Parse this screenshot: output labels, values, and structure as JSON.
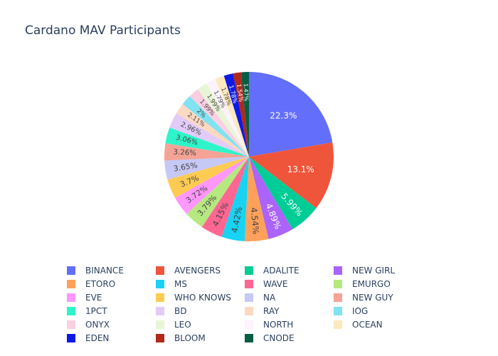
{
  "chart_data": {
    "type": "pie",
    "title": "Cardano MAV Participants",
    "show_text_values": true,
    "legend_position": "bottom",
    "legend_columns": 4,
    "slices": [
      {
        "label": "BINANCE",
        "value": 22.3,
        "text": "22.3%",
        "color": "#636efa"
      },
      {
        "label": "AVENGERS",
        "value": 13.1,
        "text": "13.1%",
        "color": "#EF553B"
      },
      {
        "label": "ADALITE",
        "value": 5.99,
        "text": "5.99%",
        "color": "#00cc96"
      },
      {
        "label": "NEW GIRL",
        "value": 4.89,
        "text": "4.89%",
        "color": "#ab63fa"
      },
      {
        "label": "ETORO",
        "value": 4.54,
        "text": "4.54%",
        "color": "#FFA15A"
      },
      {
        "label": "MS",
        "value": 4.42,
        "text": "4.42%",
        "color": "#19d3f3"
      },
      {
        "label": "WAVE",
        "value": 4.15,
        "text": "4.15%",
        "color": "#FF6692"
      },
      {
        "label": "EMURGO",
        "value": 3.79,
        "text": "3.79%",
        "color": "#B6E880"
      },
      {
        "label": "EVE",
        "value": 3.72,
        "text": "3.72%",
        "color": "#FF97FF"
      },
      {
        "label": "WHO KNOWS",
        "value": 3.7,
        "text": "3.7%",
        "color": "#FECB52"
      },
      {
        "label": "NA",
        "value": 3.65,
        "text": "3.65%",
        "color": "#c6c8f5"
      },
      {
        "label": "NEW GUY",
        "value": 3.26,
        "text": "3.26%",
        "color": "#f4a396"
      },
      {
        "label": "1PCT",
        "value": 3.06,
        "text": "3.06%",
        "color": "#2ef5c9"
      },
      {
        "label": "BD",
        "value": 2.96,
        "text": "2.96%",
        "color": "#e2cbf8"
      },
      {
        "label": "RAY",
        "value": 2.11,
        "text": "2.11%",
        "color": "#fcd9c0"
      },
      {
        "label": "IOG",
        "value": 2.0,
        "text": "2%",
        "color": "#7fe3f2"
      },
      {
        "label": "ONYX",
        "value": 1.99,
        "text": "1.99%",
        "color": "#fccfe0"
      },
      {
        "label": "LEO",
        "value": 1.99,
        "text": "1.99%",
        "color": "#e8f5d6"
      },
      {
        "label": "NORTH",
        "value": 1.79,
        "text": "1.79%",
        "color": "#fdf2fd"
      },
      {
        "label": "OCEAN",
        "value": 1.78,
        "text": "1.78%",
        "color": "#fde8bf"
      },
      {
        "label": "EDEN",
        "value": 1.78,
        "text": "1.78%",
        "color": "#0d1ae6"
      },
      {
        "label": "BLOOM",
        "value": 1.54,
        "text": "1.54%",
        "color": "#b0291b"
      },
      {
        "label": "CNODE",
        "value": 1.47,
        "text": "1.47%",
        "color": "#065e44"
      }
    ]
  }
}
